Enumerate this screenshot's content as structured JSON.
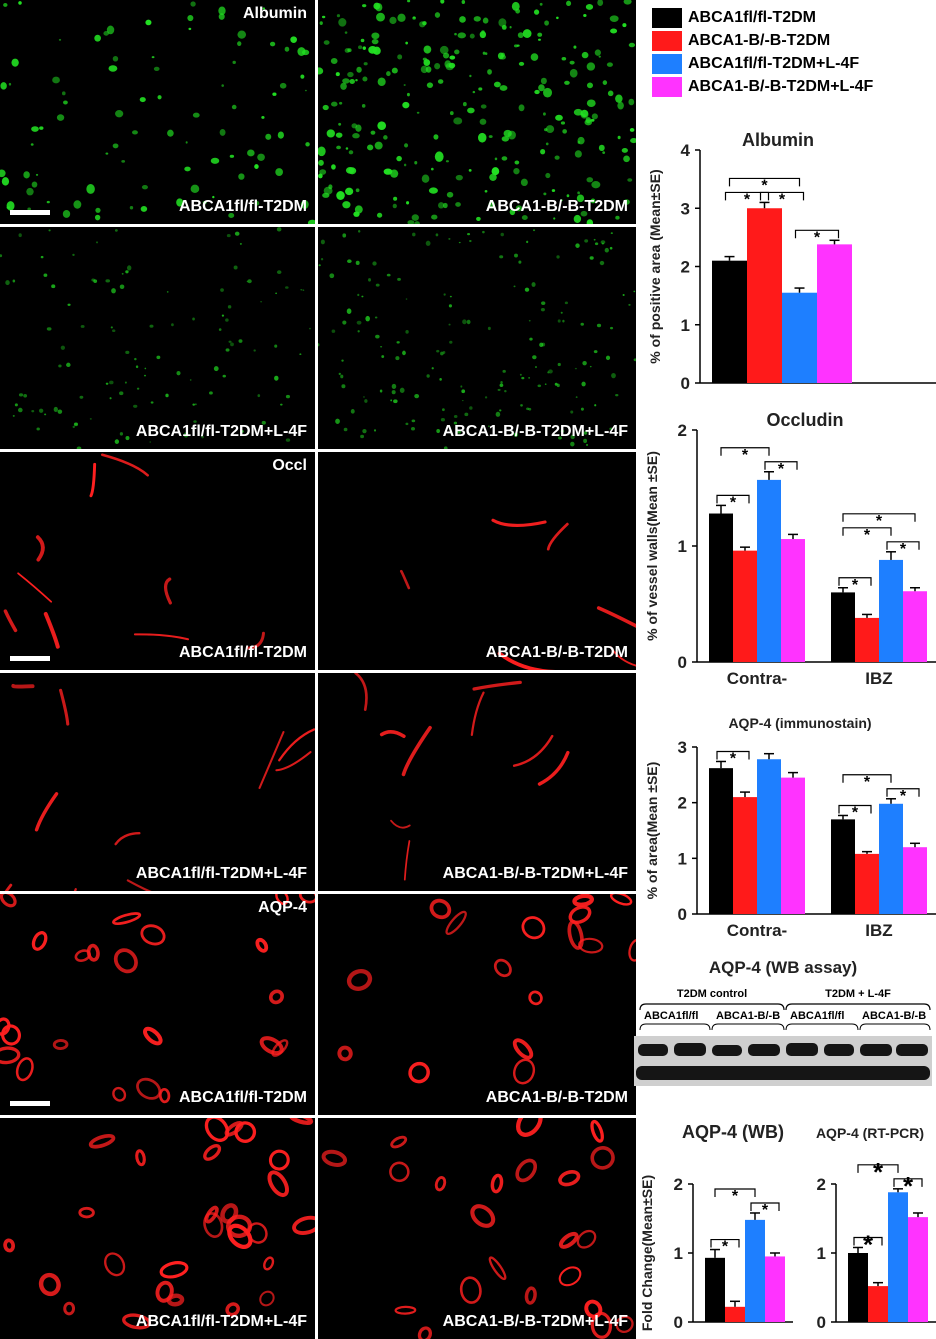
{
  "legend": [
    {
      "label": "ABCA1fl/fl-T2DM",
      "color": "#000000"
    },
    {
      "label": "ABCA1-B/-B-T2DM",
      "color": "#ff1a1a"
    },
    {
      "label": "ABCA1fl/fl-T2DM+L-4F",
      "color": "#1e7fff"
    },
    {
      "label": "ABCA1-B/-B-T2DM+L-4F",
      "color": "#ff33ff"
    }
  ],
  "micrographs": {
    "albumin_stain_label": "Albumin",
    "occludin_stain_label": "Occl",
    "aqp4_stain_label": "AQP-4",
    "group_labels": [
      "ABCA1fl/fl-T2DM",
      "ABCA1-B/-B-T2DM",
      "ABCA1fl/fl-T2DM+L-4F",
      "ABCA1-B/-B-T2DM+L-4F"
    ],
    "albumin_color": "#22e022",
    "red_color": "#ff2020"
  },
  "western_blot": {
    "title": "AQP-4 (WB assay)",
    "groups": [
      "T2DM control",
      "T2DM + L-4F"
    ],
    "lanes": [
      "ABCA1fl/fl",
      "ABCA1-B/-B",
      "ABCA1fl/fl",
      "ABCA1-B/-B"
    ]
  },
  "chart_data": [
    {
      "type": "bar",
      "title": "Albumin",
      "ylabel": "% of positive area (Mean±SE)",
      "xlabel": "",
      "ylim": [
        0,
        4
      ],
      "yticks": [
        0,
        1,
        2,
        3,
        4
      ],
      "categories": [
        ""
      ],
      "series": [
        {
          "name": "ABCA1fl/fl-T2DM",
          "values": [
            2.1
          ],
          "errors": [
            0.07
          ]
        },
        {
          "name": "ABCA1-B/-B-T2DM",
          "values": [
            3.0
          ],
          "errors": [
            0.1
          ]
        },
        {
          "name": "ABCA1fl/fl-T2DM+L-4F",
          "values": [
            1.55
          ],
          "errors": [
            0.08
          ]
        },
        {
          "name": "ABCA1-B/-B-T2DM+L-4F",
          "values": [
            2.38
          ],
          "errors": [
            0.07
          ]
        }
      ],
      "significance": [
        {
          "group": 0,
          "from": 0,
          "to": 1,
          "label": "*"
        },
        {
          "group": 0,
          "from": 0,
          "to": 2,
          "label": "*"
        },
        {
          "group": 0,
          "from": 1,
          "to": 2,
          "label": "*"
        },
        {
          "group": 0,
          "from": 2,
          "to": 3,
          "label": "*"
        }
      ]
    },
    {
      "type": "bar",
      "title": "Occludin",
      "ylabel": "% of vessel walls(Mean ±SE)",
      "xlabel": "",
      "ylim": [
        0,
        2
      ],
      "yticks": [
        0,
        1,
        2
      ],
      "categories": [
        "Contra-",
        "IBZ"
      ],
      "series": [
        {
          "name": "ABCA1fl/fl-T2DM",
          "values": [
            1.28,
            0.6
          ],
          "errors": [
            0.07,
            0.04
          ]
        },
        {
          "name": "ABCA1-B/-B-T2DM",
          "values": [
            0.96,
            0.38
          ],
          "errors": [
            0.03,
            0.03
          ]
        },
        {
          "name": "ABCA1fl/fl-T2DM+L-4F",
          "values": [
            1.57,
            0.88
          ],
          "errors": [
            0.07,
            0.07
          ]
        },
        {
          "name": "ABCA1-B/-B-T2DM+L-4F",
          "values": [
            1.06,
            0.61
          ],
          "errors": [
            0.04,
            0.03
          ]
        }
      ],
      "significance": [
        {
          "group": 0,
          "from": 0,
          "to": 1,
          "label": "*"
        },
        {
          "group": 0,
          "from": 0,
          "to": 2,
          "label": "*"
        },
        {
          "group": 0,
          "from": 2,
          "to": 3,
          "label": "*"
        },
        {
          "group": 1,
          "from": 0,
          "to": 1,
          "label": "*"
        },
        {
          "group": 1,
          "from": 0,
          "to": 2,
          "label": "*"
        },
        {
          "group": 1,
          "from": 0,
          "to": 3,
          "label": "*"
        },
        {
          "group": 1,
          "from": 2,
          "to": 3,
          "label": "*"
        }
      ]
    },
    {
      "type": "bar",
      "title": "AQP-4 (immunostain)",
      "ylabel": "% of area(Mean ±SE)",
      "xlabel": "",
      "ylim": [
        0,
        3
      ],
      "yticks": [
        0,
        1,
        2,
        3
      ],
      "categories": [
        "Contra-",
        "IBZ"
      ],
      "series": [
        {
          "name": "ABCA1fl/fl-T2DM",
          "values": [
            2.62,
            1.7
          ],
          "errors": [
            0.12,
            0.07
          ]
        },
        {
          "name": "ABCA1-B/-B-T2DM",
          "values": [
            2.1,
            1.08
          ],
          "errors": [
            0.09,
            0.04
          ]
        },
        {
          "name": "ABCA1fl/fl-T2DM+L-4F",
          "values": [
            2.78,
            1.98
          ],
          "errors": [
            0.1,
            0.09
          ]
        },
        {
          "name": "ABCA1-B/-B-T2DM+L-4F",
          "values": [
            2.45,
            1.2
          ],
          "errors": [
            0.09,
            0.07
          ]
        }
      ],
      "significance": [
        {
          "group": 0,
          "from": 0,
          "to": 1,
          "label": "*"
        },
        {
          "group": 1,
          "from": 0,
          "to": 1,
          "label": "*"
        },
        {
          "group": 1,
          "from": 0,
          "to": 2,
          "label": "*"
        },
        {
          "group": 1,
          "from": 2,
          "to": 3,
          "label": "*"
        }
      ]
    },
    {
      "type": "bar",
      "title": "AQP-4 (WB)",
      "ylabel": "Fold Change(Mean±SE)",
      "xlabel": "",
      "ylim": [
        0,
        2
      ],
      "yticks": [
        0,
        1,
        2
      ],
      "categories": [
        ""
      ],
      "series": [
        {
          "name": "ABCA1fl/fl-T2DM",
          "values": [
            0.93
          ],
          "errors": [
            0.12
          ]
        },
        {
          "name": "ABCA1-B/-B-T2DM",
          "values": [
            0.22
          ],
          "errors": [
            0.08
          ]
        },
        {
          "name": "ABCA1fl/fl-T2DM+L-4F",
          "values": [
            1.48
          ],
          "errors": [
            0.1
          ]
        },
        {
          "name": "ABCA1-B/-B-T2DM+L-4F",
          "values": [
            0.95
          ],
          "errors": [
            0.05
          ]
        }
      ],
      "significance": [
        {
          "group": 0,
          "from": 0,
          "to": 1,
          "label": "*"
        },
        {
          "group": 0,
          "from": 0,
          "to": 2,
          "label": "*"
        },
        {
          "group": 0,
          "from": 2,
          "to": 3,
          "label": "*"
        }
      ]
    },
    {
      "type": "bar",
      "title": "AQP-4 (RT-PCR)",
      "ylabel": "",
      "xlabel": "",
      "ylim": [
        0,
        2
      ],
      "yticks": [
        0,
        1,
        2
      ],
      "categories": [
        ""
      ],
      "series": [
        {
          "name": "ABCA1fl/fl-T2DM",
          "values": [
            1.0
          ],
          "errors": [
            0.08
          ]
        },
        {
          "name": "ABCA1-B/-B-T2DM",
          "values": [
            0.52
          ],
          "errors": [
            0.05
          ]
        },
        {
          "name": "ABCA1fl/fl-T2DM+L-4F",
          "values": [
            1.88
          ],
          "errors": [
            0.05
          ]
        },
        {
          "name": "ABCA1-B/-B-T2DM+L-4F",
          "values": [
            1.52
          ],
          "errors": [
            0.06
          ]
        }
      ],
      "significance": [
        {
          "group": 0,
          "from": 0,
          "to": 1,
          "label": "*"
        },
        {
          "group": 0,
          "from": 0,
          "to": 2,
          "label": "*"
        },
        {
          "group": 0,
          "from": 2,
          "to": 3,
          "label": "*"
        }
      ]
    }
  ]
}
